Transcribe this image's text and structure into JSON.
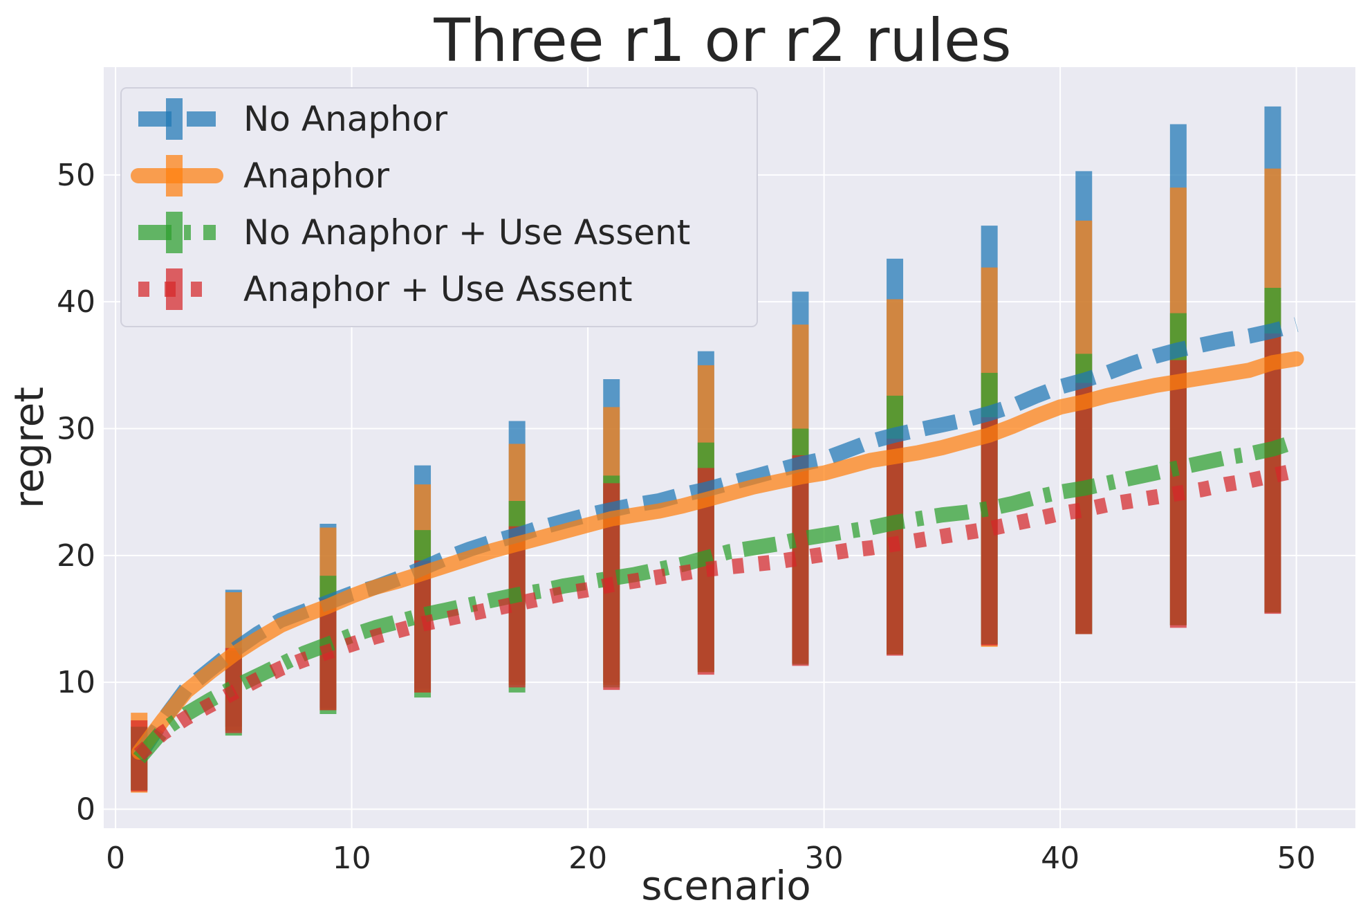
{
  "chart_data": {
    "type": "line",
    "title": "Three r1 or r2 rules",
    "xlabel": "scenario",
    "ylabel": "regret",
    "xlim": [
      -0.5,
      52.5
    ],
    "ylim": [
      -1.5,
      58.5
    ],
    "xticks": [
      0,
      10,
      20,
      30,
      40,
      50
    ],
    "yticks": [
      0,
      10,
      20,
      30,
      40,
      50
    ],
    "grid": true,
    "legend_position": "top-left",
    "x": [
      1,
      2,
      3,
      4,
      5,
      6,
      7,
      8,
      9,
      10,
      11,
      12,
      13,
      14,
      15,
      16,
      17,
      18,
      19,
      20,
      21,
      22,
      23,
      24,
      25,
      26,
      27,
      28,
      29,
      30,
      31,
      32,
      33,
      34,
      35,
      36,
      37,
      38,
      39,
      40,
      41,
      42,
      43,
      44,
      45,
      46,
      47,
      48,
      49,
      50
    ],
    "error_x": [
      1,
      5,
      9,
      13,
      17,
      21,
      25,
      29,
      33,
      37,
      41,
      45,
      49
    ],
    "series": [
      {
        "name": "No Anaphor",
        "color": "#1f77b4",
        "linestyle": "dashed",
        "values": [
          4.2,
          7.0,
          9.5,
          11.0,
          12.5,
          13.8,
          14.9,
          15.6,
          16.3,
          17.0,
          17.5,
          18.2,
          19.0,
          19.8,
          20.5,
          21.1,
          21.6,
          22.2,
          22.7,
          23.2,
          23.6,
          24.0,
          24.3,
          24.8,
          25.2,
          25.7,
          26.2,
          26.7,
          27.2,
          27.6,
          28.3,
          29.0,
          29.5,
          29.9,
          30.3,
          30.7,
          31.2,
          31.8,
          32.6,
          33.3,
          33.8,
          34.4,
          35.1,
          35.7,
          36.2,
          36.6,
          37.0,
          37.3,
          37.7,
          38.2
        ],
        "err_low": [
          1.5,
          6.5,
          8.0,
          9.5,
          10.0,
          10.0,
          11.0,
          11.5,
          12.5,
          13.0,
          14.0,
          14.5,
          15.5
        ],
        "err_high": [
          6.5,
          17.3,
          22.5,
          27.1,
          30.6,
          33.9,
          36.1,
          40.8,
          43.4,
          46.0,
          50.3,
          54.0,
          55.4
        ]
      },
      {
        "name": "Anaphor",
        "color": "#ff7f0e",
        "linestyle": "solid",
        "values": [
          4.5,
          7.0,
          9.3,
          10.8,
          12.2,
          13.4,
          14.5,
          15.3,
          16.0,
          16.8,
          17.5,
          18.0,
          18.6,
          19.2,
          19.8,
          20.4,
          20.9,
          21.4,
          21.9,
          22.4,
          22.9,
          23.2,
          23.5,
          23.9,
          24.4,
          24.9,
          25.4,
          25.8,
          26.2,
          26.5,
          27.0,
          27.5,
          27.8,
          28.1,
          28.5,
          29.0,
          29.5,
          30.2,
          31.0,
          31.7,
          32.1,
          32.6,
          33.0,
          33.4,
          33.7,
          34.0,
          34.3,
          34.6,
          35.2,
          35.5
        ],
        "err_low": [
          1.3,
          6.2,
          7.8,
          9.2,
          9.8,
          9.8,
          10.8,
          11.5,
          12.2,
          12.8,
          13.8,
          14.5,
          15.5
        ],
        "err_high": [
          7.6,
          17.1,
          22.2,
          25.6,
          28.8,
          31.7,
          35.0,
          38.2,
          40.2,
          42.7,
          46.4,
          49.0,
          50.5
        ]
      },
      {
        "name": "No Anaphor + Use Assent",
        "color": "#2ca02c",
        "linestyle": "dashdot",
        "values": [
          4.0,
          6.2,
          7.5,
          8.6,
          9.6,
          10.5,
          11.4,
          12.3,
          13.0,
          13.7,
          14.3,
          14.8,
          15.3,
          15.7,
          16.1,
          16.5,
          16.9,
          17.2,
          17.6,
          17.9,
          18.2,
          18.5,
          18.9,
          19.3,
          19.8,
          20.3,
          20.6,
          20.9,
          21.3,
          21.6,
          21.9,
          22.2,
          22.6,
          22.9,
          23.2,
          23.4,
          23.7,
          24.1,
          24.6,
          25.0,
          25.3,
          25.7,
          26.1,
          26.5,
          26.9,
          27.3,
          27.7,
          28.0,
          28.4,
          29.0
        ],
        "err_low": [
          1.5,
          5.8,
          7.5,
          8.8,
          9.2,
          9.6,
          10.8,
          11.4,
          12.2,
          13.0,
          13.8,
          14.5,
          15.5
        ],
        "err_high": [
          6.5,
          12.5,
          18.4,
          22.0,
          24.3,
          26.3,
          28.9,
          30.0,
          32.6,
          34.4,
          35.9,
          39.1,
          41.1
        ]
      },
      {
        "name": "Anaphor + Use Assent",
        "color": "#d62728",
        "linestyle": "dotted",
        "values": [
          4.3,
          6.0,
          7.2,
          8.2,
          9.2,
          10.2,
          11.1,
          11.8,
          12.4,
          13.0,
          13.6,
          14.1,
          14.6,
          15.0,
          15.4,
          15.8,
          16.2,
          16.6,
          17.0,
          17.3,
          17.7,
          18.0,
          18.3,
          18.6,
          18.9,
          19.1,
          19.3,
          19.5,
          19.8,
          20.1,
          20.4,
          20.6,
          20.9,
          21.2,
          21.5,
          21.8,
          22.1,
          22.5,
          22.9,
          23.3,
          23.6,
          24.0,
          24.3,
          24.6,
          24.9,
          25.2,
          25.6,
          25.9,
          26.3,
          26.7
        ],
        "err_low": [
          1.4,
          6.0,
          7.8,
          9.2,
          9.6,
          9.4,
          10.6,
          11.3,
          12.1,
          12.9,
          13.8,
          14.3,
          15.4
        ],
        "err_high": [
          7.0,
          12.7,
          16.6,
          19.6,
          22.3,
          25.7,
          26.9,
          27.9,
          29.2,
          30.9,
          33.6,
          35.4,
          37.5
        ]
      }
    ]
  }
}
